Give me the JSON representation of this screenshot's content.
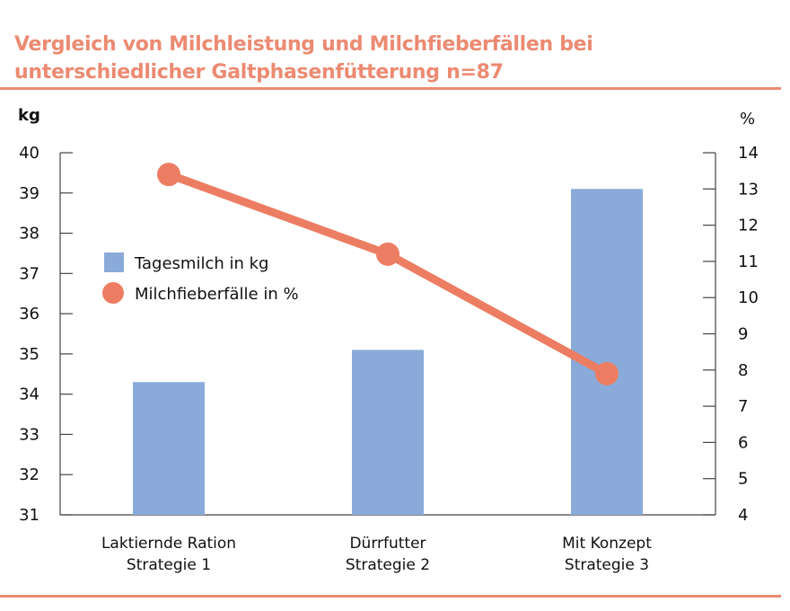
{
  "title_lines": [
    "Vergleich von Milchleistung und Milchfieberfällen bei",
    "unterschiedlicher Galtphasenfütterung n=87"
  ],
  "chart_data": {
    "type": "bar+line",
    "title": "Vergleich von Milchleistung und Milchfieberfällen bei unterschiedlicher Galtphasenfütterung n=87",
    "categories": [
      [
        "Laktiernde Ration",
        "Strategie 1"
      ],
      [
        "Dürrfutter",
        "Strategie 2"
      ],
      [
        "Mit Konzept",
        "Strategie 3"
      ]
    ],
    "left_axis": {
      "label": "kg",
      "range": [
        31,
        40
      ],
      "ticks": [
        "31",
        "32",
        "33",
        "34",
        "35",
        "36",
        "37",
        "38",
        "39",
        "40"
      ]
    },
    "right_axis": {
      "label": "%",
      "range": [
        4,
        14
      ],
      "ticks": [
        "4",
        "5",
        "6",
        "7",
        "8",
        "9",
        "10",
        "11",
        "12",
        "13",
        "14"
      ]
    },
    "series": [
      {
        "name": "Tagesmilch in kg",
        "type": "bar",
        "axis": "left",
        "color": "#8aabd9",
        "values": [
          34.3,
          35.1,
          39.1
        ]
      },
      {
        "name": "Milchfieberfälle in %",
        "type": "line",
        "axis": "right",
        "color": "#ec7d62",
        "values": [
          13.4,
          11.2,
          7.9
        ]
      }
    ],
    "legend_position": "left-middle",
    "grid": false
  }
}
